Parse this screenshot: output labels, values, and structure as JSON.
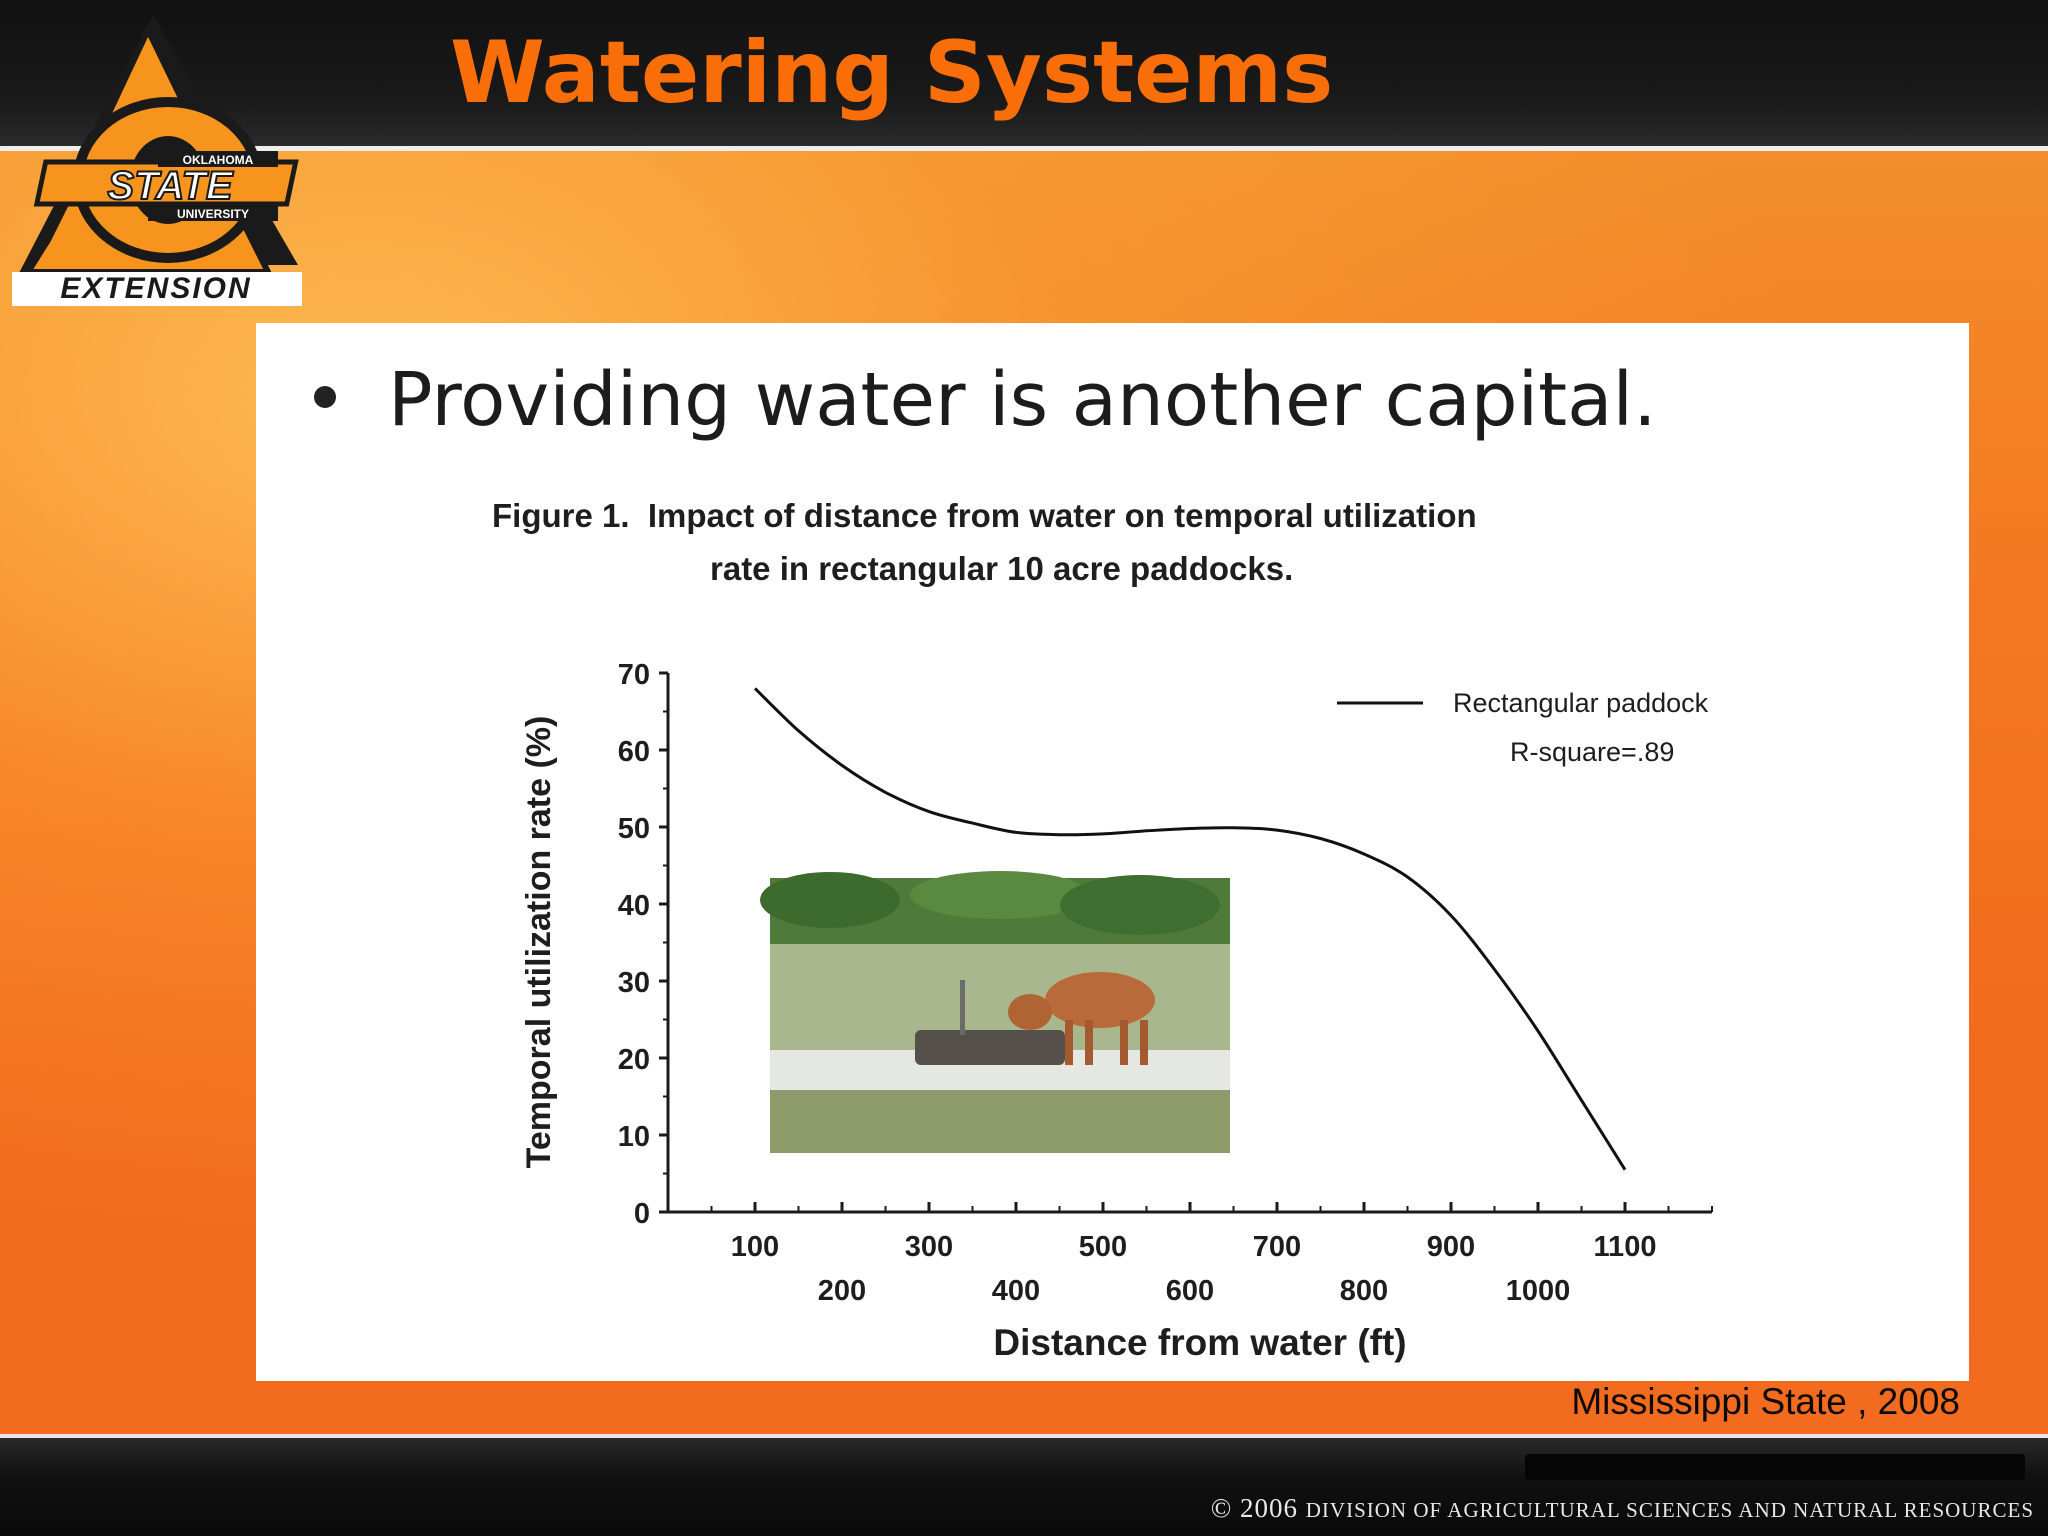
{
  "slide": {
    "title": "Watering Systems",
    "bullet": "Providing water is another capital.",
    "source": "Mississippi State , 2008",
    "footer_copyright": "© 2006",
    "footer_org": "Division Of Agricultural Sciences And Natural Resources"
  },
  "logo": {
    "line1": "OKLAHOMA",
    "line2": "STATE",
    "line3": "UNIVERSITY",
    "line4": "EXTENSION",
    "colors": {
      "orange": "#f7941d",
      "black": "#1a1a1a"
    }
  },
  "photo": {
    "description_icon": "cow-at-water-trough-photo"
  },
  "chart_data": {
    "type": "line",
    "caption_line1": "Figure 1.  Impact of distance from water on temporal utilization",
    "caption_line2": "rate in rectangular 10 acre paddocks.",
    "xlabel": "Distance from water (ft)",
    "ylabel": "Temporal utilization rate (%)",
    "xlim": [
      0,
      1200
    ],
    "ylim": [
      0,
      70
    ],
    "x_ticks": [
      "100",
      "200",
      "300",
      "400",
      "500",
      "600",
      "700",
      "800",
      "900",
      "1000",
      "1100"
    ],
    "y_ticks": [
      "0",
      "10",
      "20",
      "30",
      "40",
      "50",
      "60",
      "70"
    ],
    "legend_placement": "top-right",
    "legend_label": "Rectangular paddock",
    "r_square_label": "R-square=.89",
    "series": [
      {
        "name": "Rectangular paddock",
        "x": [
          100,
          150,
          200,
          250,
          300,
          350,
          400,
          450,
          500,
          550,
          600,
          650,
          700,
          750,
          800,
          850,
          900,
          950,
          1000,
          1050,
          1100
        ],
        "y": [
          68,
          62.5,
          58,
          54.5,
          52,
          50.5,
          49.3,
          49,
          49.1,
          49.5,
          49.8,
          49.9,
          49.6,
          48.5,
          46.5,
          43.5,
          38.5,
          31.5,
          23.5,
          14.5,
          5.5
        ]
      }
    ]
  }
}
